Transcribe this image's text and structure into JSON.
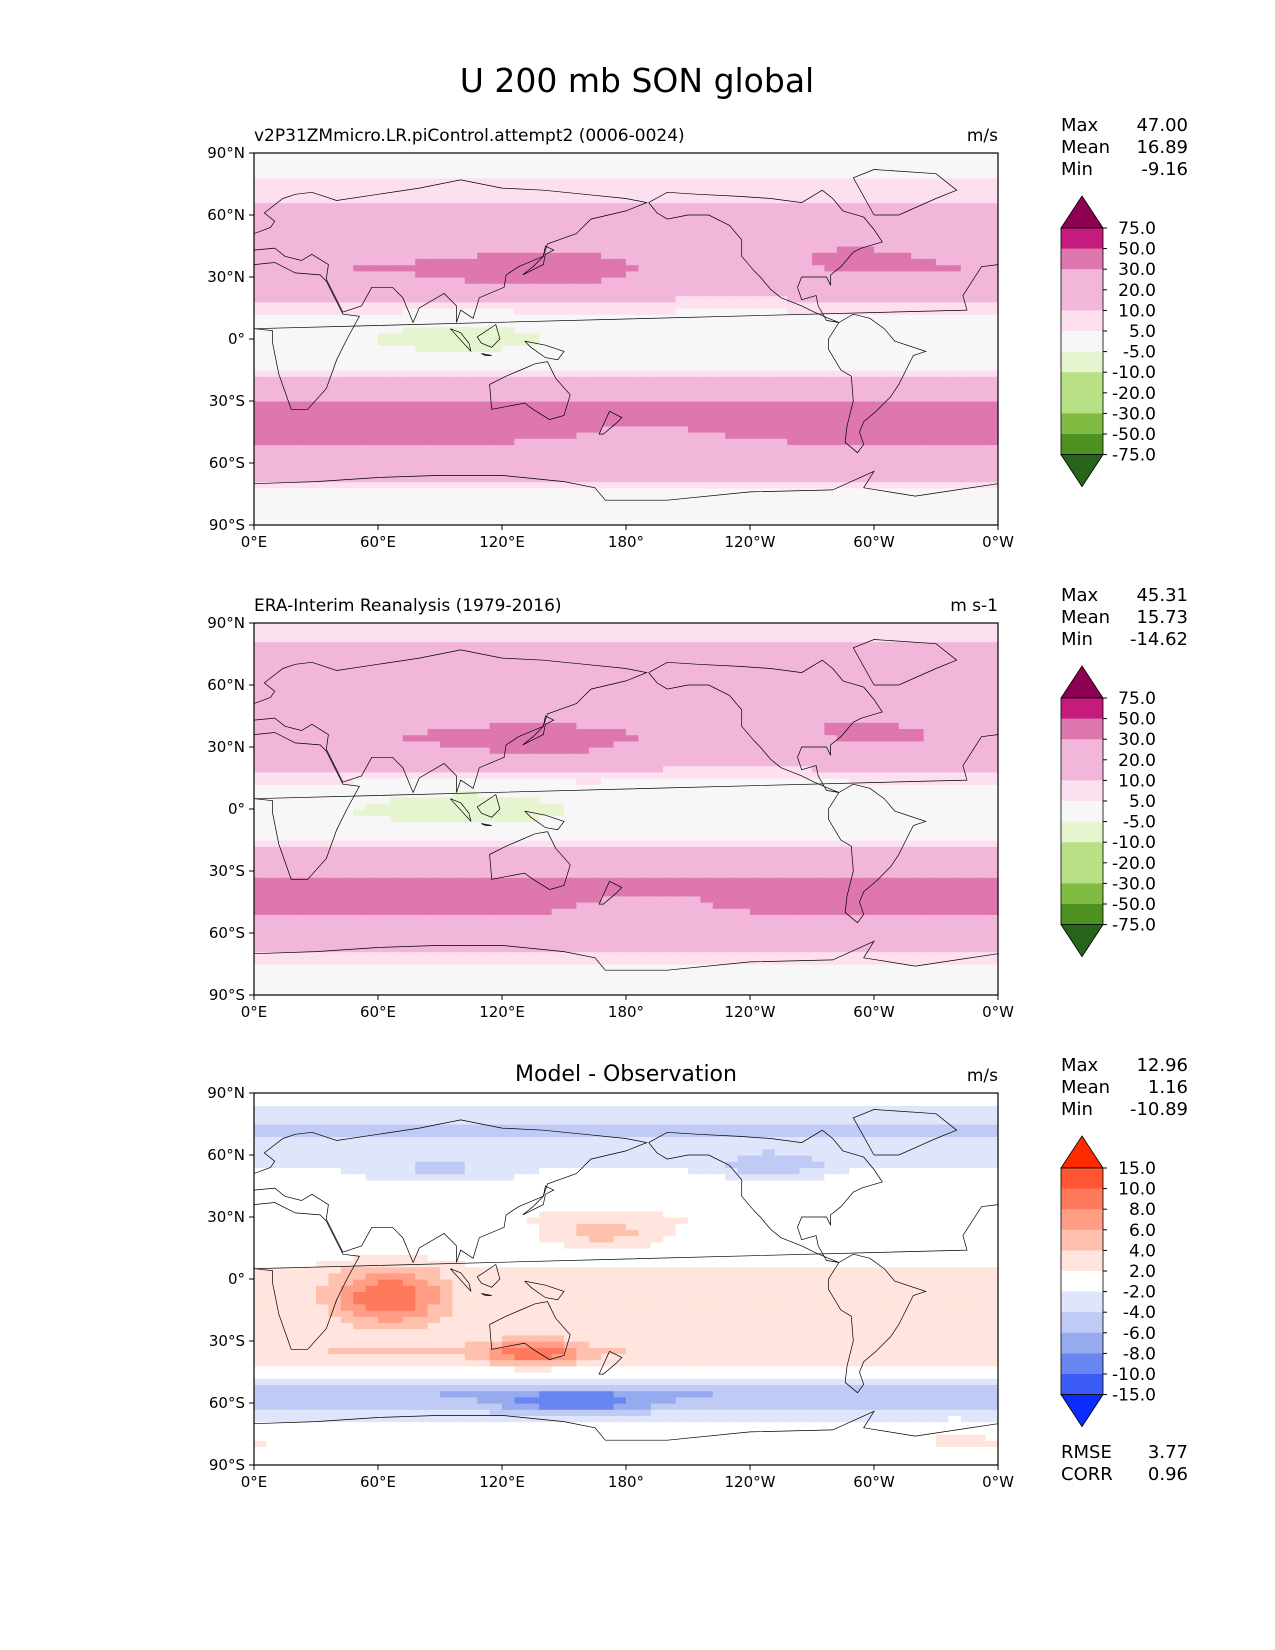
{
  "figure_title": "U 200 mb SON global",
  "colors": {
    "main_cmap": [
      "#276419",
      "#4d9221",
      "#7fbc41",
      "#b8e186",
      "#e6f5d0",
      "#f7f7f7",
      "#fde0ef",
      "#f1b6da",
      "#de77ae",
      "#c51b7d",
      "#8e0152"
    ],
    "main_cmap_extended": [
      "#276419",
      "#4d9221",
      "#7fbc41",
      "#a6d96a",
      "#c7e9a0",
      "#e6f5d0",
      "#f7f7f7",
      "#fde0ef",
      "#f7c6e1",
      "#f1b6da",
      "#e996c6",
      "#de77ae",
      "#c51b7d",
      "#8e0152"
    ],
    "diff_cmap": [
      "#0b2cff",
      "#3a5cf5",
      "#6985f2",
      "#96aaf0",
      "#bfcbf5",
      "#dfe5fa",
      "#ffffff",
      "#ffe5dd",
      "#ffc0ae",
      "#ff9d85",
      "#ff7a5c",
      "#ff5533",
      "#ff2a00"
    ],
    "coastline": "#000000"
  },
  "icons": {
    "colorbar_extend": "triangle-arrow"
  },
  "chart_data": [
    {
      "type": "heatmap",
      "title": "v2P31ZMmicro.LR.piControl.attempt2 (0006-0024)",
      "units": "m/s",
      "xlabel": "",
      "ylabel": "",
      "x_ticks": [
        "0°E",
        "60°E",
        "120°E",
        "180°",
        "120°W",
        "60°W",
        "0°W"
      ],
      "y_ticks": [
        "90°N",
        "60°N",
        "30°N",
        "0°",
        "30°S",
        "60°S",
        "90°S"
      ],
      "xlim": [
        0,
        360
      ],
      "ylim": [
        -90,
        90
      ],
      "stats": [
        {
          "label": "Max",
          "value": "47.00"
        },
        {
          "label": "Mean",
          "value": "16.89"
        },
        {
          "label": "Min",
          "value": "-9.16"
        }
      ],
      "colorbar_levels": [
        "75.0",
        "50.0",
        "30.0",
        "20.0",
        "10.0",
        "5.0",
        "-5.0",
        "-10.0",
        "-20.0",
        "-30.0",
        "-50.0",
        "-75.0"
      ],
      "zonal_profile_lat": [
        -90,
        -80,
        -75,
        -70,
        -65,
        -60,
        -55,
        -50,
        -45,
        -40,
        -35,
        -30,
        -25,
        -20,
        -15,
        -10,
        -5,
        0,
        5,
        10,
        15,
        20,
        25,
        30,
        35,
        40,
        45,
        50,
        55,
        60,
        65,
        70,
        75,
        80,
        90
      ],
      "zonal_profile_u": [
        0,
        1,
        3,
        8,
        13,
        18,
        24,
        30,
        34,
        36,
        34,
        30,
        22,
        13,
        5,
        1,
        -2,
        -3,
        -1,
        3,
        8,
        14,
        21,
        27,
        30,
        27,
        22,
        17,
        14,
        12,
        10,
        8,
        6,
        4,
        2
      ]
    },
    {
      "type": "heatmap",
      "title": "ERA-Interim Reanalysis (1979-2016)",
      "units": "m s-1",
      "xlabel": "",
      "ylabel": "",
      "x_ticks": [
        "0°E",
        "60°E",
        "120°E",
        "180°",
        "120°W",
        "60°W",
        "0°W"
      ],
      "y_ticks": [
        "90°N",
        "60°N",
        "30°N",
        "0°",
        "30°S",
        "60°S",
        "90°S"
      ],
      "xlim": [
        0,
        360
      ],
      "ylim": [
        -90,
        90
      ],
      "stats": [
        {
          "label": "Max",
          "value": "45.31"
        },
        {
          "label": "Mean",
          "value": "15.73"
        },
        {
          "label": "Min",
          "value": "-14.62"
        }
      ],
      "colorbar_levels": [
        "75.0",
        "50.0",
        "30.0",
        "20.0",
        "10.0",
        "5.0",
        "-5.0",
        "-10.0",
        "-20.0",
        "-30.0",
        "-50.0",
        "-75.0"
      ],
      "zonal_profile_lat": [
        -90,
        -80,
        -75,
        -70,
        -65,
        -60,
        -55,
        -50,
        -45,
        -40,
        -35,
        -30,
        -25,
        -20,
        -15,
        -10,
        -5,
        0,
        5,
        10,
        15,
        20,
        25,
        30,
        35,
        40,
        45,
        50,
        55,
        60,
        65,
        70,
        75,
        80,
        90
      ],
      "zonal_profile_u": [
        0,
        2,
        5,
        10,
        16,
        22,
        27,
        31,
        34,
        35,
        33,
        28,
        20,
        11,
        4,
        0,
        -3,
        -4,
        -2,
        2,
        7,
        13,
        20,
        26,
        29,
        26,
        21,
        17,
        15,
        14,
        13,
        12,
        11,
        10,
        8
      ]
    },
    {
      "type": "heatmap",
      "title": "Model - Observation",
      "units": "m/s",
      "xlabel": "",
      "ylabel": "",
      "x_ticks": [
        "0°E",
        "60°E",
        "120°E",
        "180°",
        "120°W",
        "60°W",
        "0°W"
      ],
      "y_ticks": [
        "90°N",
        "60°N",
        "30°N",
        "0°",
        "30°S",
        "60°S",
        "90°S"
      ],
      "xlim": [
        0,
        360
      ],
      "ylim": [
        -90,
        90
      ],
      "stats": [
        {
          "label": "Max",
          "value": "12.96"
        },
        {
          "label": "Mean",
          "value": "1.16"
        },
        {
          "label": "Min",
          "value": "-10.89"
        }
      ],
      "colorbar_levels": [
        "15.0",
        "10.0",
        "8.0",
        "6.0",
        "4.0",
        "2.0",
        "-2.0",
        "-4.0",
        "-6.0",
        "-8.0",
        "-10.0",
        "-15.0"
      ],
      "extra_stats": [
        {
          "label": "RMSE",
          "value": "3.77"
        },
        {
          "label": "CORR",
          "value": "0.96"
        }
      ],
      "zonal_profile_lat": [
        -90,
        -80,
        -75,
        -70,
        -65,
        -60,
        -55,
        -50,
        -45,
        -40,
        -35,
        -30,
        -25,
        -20,
        -15,
        -10,
        -5,
        0,
        5,
        10,
        15,
        20,
        25,
        30,
        35,
        40,
        45,
        50,
        55,
        60,
        65,
        70,
        75,
        80,
        90
      ],
      "zonal_profile_u": [
        0,
        2,
        2,
        -1,
        -3,
        -5,
        -6,
        -4,
        0,
        3,
        4,
        3,
        2,
        2,
        2,
        2,
        2,
        2,
        2,
        1,
        1,
        1,
        1,
        2,
        1,
        1,
        0,
        -1,
        -2,
        -2,
        -3,
        -4,
        -4,
        -3,
        0
      ]
    }
  ]
}
